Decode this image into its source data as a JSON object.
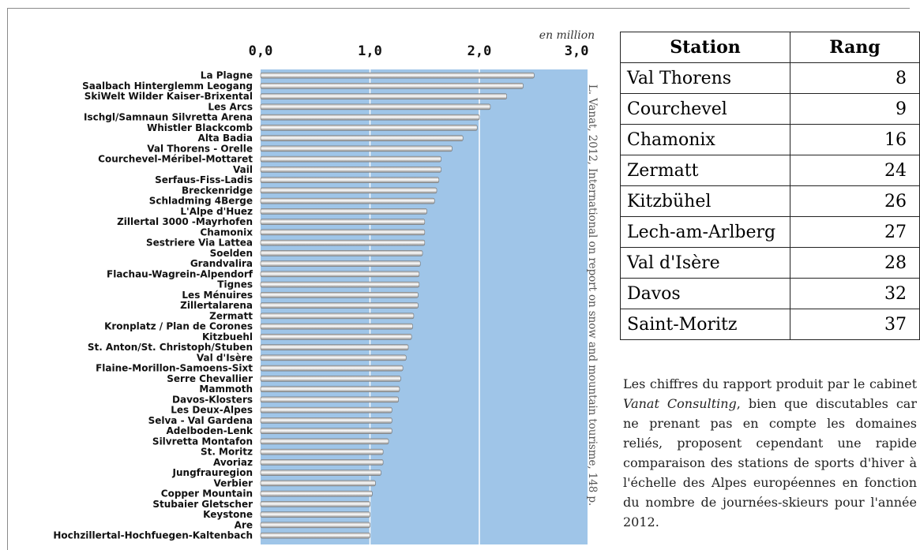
{
  "chart_data": {
    "type": "bar",
    "orientation": "horizontal",
    "unit_label": "en million",
    "xlim": [
      0,
      3
    ],
    "ticks": [
      "0,0",
      "1,0",
      "2,0",
      "3,0"
    ],
    "tick_values": [
      0,
      1,
      2,
      3
    ],
    "categories": [
      "La Plagne",
      "Saalbach Hinterglemm Leogang",
      "SkiWelt Wilder Kaiser-Brixental",
      "Les Arcs",
      "Ischgl/Samnaun Silvretta Arena",
      "Whistler Blackcomb",
      "Alta Badia",
      "Val Thorens - Orelle",
      "Courchevel-Méribel-Mottaret",
      "Vail",
      "Serfaus-Fiss-Ladis",
      "Breckenridge",
      "Schladming 4Berge",
      "L'Alpe d'Huez",
      "Zillertal 3000 -Mayrhofen",
      "Chamonix",
      "Sestriere Via Lattea",
      "Soelden",
      "Grandvalira",
      "Flachau-Wagrein-Alpendorf",
      "Tignes",
      "Les Ménuires",
      "Zillertalarena",
      "Zermatt",
      "Kronplatz / Plan de Corones",
      "Kitzbuehl",
      "St. Anton/St. Christoph/Stuben",
      "Val d'Isère",
      "Flaine-Morillon-Samoens-Sixt",
      "Serre Chevallier",
      "Mammoth",
      "Davos-Klosters",
      "Les Deux-Alpes",
      "Selva - Val Gardena",
      "Adelboden-Lenk",
      "Silvretta Montafon",
      "St. Moritz",
      "Avoriaz",
      "Jungfrauregion",
      "Verbier",
      "Copper Mountain",
      "Stubaier Gletscher",
      "Keystone",
      "Are",
      "Hochzillertal-Hochfuegen-Kaltenbach"
    ],
    "values": [
      2.5,
      2.4,
      2.25,
      2.1,
      2.0,
      1.98,
      1.85,
      1.75,
      1.65,
      1.65,
      1.63,
      1.61,
      1.59,
      1.52,
      1.5,
      1.5,
      1.5,
      1.48,
      1.46,
      1.45,
      1.45,
      1.44,
      1.44,
      1.4,
      1.39,
      1.38,
      1.35,
      1.33,
      1.3,
      1.28,
      1.27,
      1.26,
      1.2,
      1.2,
      1.2,
      1.17,
      1.12,
      1.12,
      1.1,
      1.05,
      1.02,
      1.0,
      1.0,
      1.0,
      1.0
    ],
    "colors": {
      "plot_background": "#9fc5e8",
      "bar": "#c9c9c9",
      "gridline": "#ffffff"
    }
  },
  "credit": "L. Vanat, 2012, International on report on snow and mountain tourisme, 148 p.",
  "table": {
    "headers": [
      "Station",
      "Rang"
    ],
    "rows": [
      [
        "Val Thorens",
        "8"
      ],
      [
        "Courchevel",
        "9"
      ],
      [
        "Chamonix",
        "16"
      ],
      [
        "Zermatt",
        "24"
      ],
      [
        "Kitzbühel",
        "26"
      ],
      [
        "Lech-am-Arlberg",
        "27"
      ],
      [
        "Val d'Isère",
        "28"
      ],
      [
        "Davos",
        "32"
      ],
      [
        "Saint-Moritz",
        "37"
      ]
    ]
  },
  "caption": {
    "before": "Les chiffres du rapport produit par le cabinet ",
    "emphasis": "Vanat Consulting",
    "after": ", bien que discutables car ne prenant pas en compte les domaines reliés, proposent cependant une rapide comparaison des stations de sports d'hiver à l'échelle des Alpes européennes en fonction du nombre de journées-skieurs pour l'année 2012."
  }
}
